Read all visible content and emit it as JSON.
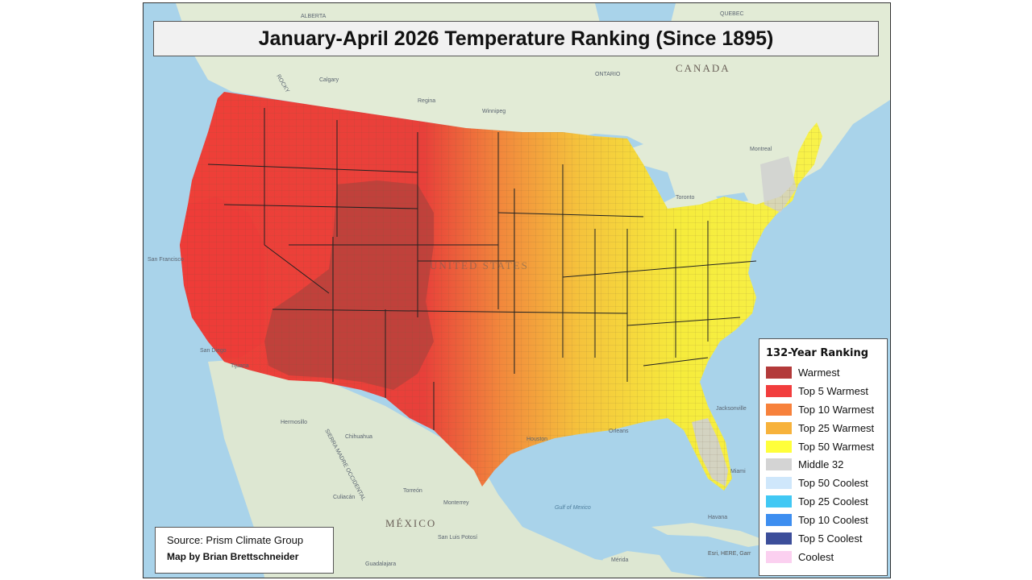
{
  "title": "January-April 2026 Temperature Ranking (Since 1895)",
  "legend": {
    "title": "132-Year Ranking",
    "items": [
      {
        "label": "Warmest",
        "color": "#b33a3a"
      },
      {
        "label": "Top 5 Warmest",
        "color": "#f23d3d"
      },
      {
        "label": "Top 10 Warmest",
        "color": "#f7813b"
      },
      {
        "label": "Top 25 Warmest",
        "color": "#f7b23b"
      },
      {
        "label": "Top 50 Warmest",
        "color": "#ffff3b"
      },
      {
        "label": "Middle 32",
        "color": "#d4d4d4"
      },
      {
        "label": "Top 50 Coolest",
        "color": "#cfe7fb"
      },
      {
        "label": "Top 25 Coolest",
        "color": "#41c8f4"
      },
      {
        "label": "Top 10 Coolest",
        "color": "#3d8ef0"
      },
      {
        "label": "Top 5 Coolest",
        "color": "#3c4e9a"
      },
      {
        "label": "Coolest",
        "color": "#fbd0f0"
      }
    ]
  },
  "source": "Source: Prism Climate Group",
  "credit": "Map by Brian Brettschneider",
  "attribution": "Esri, HERE, Garr",
  "place_labels": {
    "canada": "CANADA",
    "ontario": "ONTARIO",
    "quebec": "QUEBEC",
    "alberta": "ALBERTA",
    "united_states": "UNITED STATES",
    "mexico": "MÉXICO",
    "calgary": "Calgary",
    "regina": "Regina",
    "winnipeg": "Winnipeg",
    "toronto": "Toronto",
    "montreal": "Montreal",
    "san_francisco": "San Francisco",
    "san_diego": "San Diego",
    "tijuana": "Tijuana",
    "hermosillo": "Hermosillo",
    "chihuahua": "Chihuahua",
    "torreon": "Torreón",
    "monterrey": "Monterrey",
    "culiacan": "Culiacán",
    "san_luis_potosi": "San Luis Potosí",
    "guadalajara": "Guadalajara",
    "merida": "Mérida",
    "havana": "Havana",
    "orleans": "Orleans",
    "houston": "Houston",
    "jacksonville": "Jacksonville",
    "miami": "Miami",
    "gulf_of_mexico": "Gulf of Mexico",
    "sierra_madre": "SIERRA MADRE OCCIDENTAL",
    "rocky": "ROCKY"
  }
}
